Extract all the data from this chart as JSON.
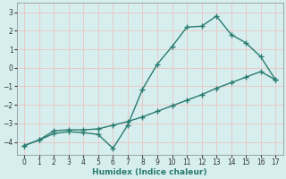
{
  "xlabel": "Humidex (Indice chaleur)",
  "line1_x": [
    0,
    1,
    2,
    3,
    4,
    5,
    6,
    7,
    8,
    9,
    10,
    11,
    12,
    13,
    14,
    15,
    16,
    17
  ],
  "line1_y": [
    -4.2,
    -3.9,
    -3.55,
    -3.45,
    -3.5,
    -3.6,
    -4.35,
    -3.1,
    -1.15,
    0.2,
    1.15,
    2.2,
    2.25,
    2.8,
    1.8,
    1.35,
    0.6,
    -0.65
  ],
  "line2_x": [
    0,
    1,
    2,
    3,
    4,
    5,
    6,
    7,
    8,
    9,
    10,
    11,
    12,
    13,
    14,
    15,
    16,
    17
  ],
  "line2_y": [
    -4.2,
    -3.9,
    -3.4,
    -3.35,
    -3.35,
    -3.3,
    -3.1,
    -2.9,
    -2.65,
    -2.35,
    -2.05,
    -1.75,
    -1.45,
    -1.1,
    -0.8,
    -0.5,
    -0.2,
    -0.65
  ],
  "line_color": "#2a7b6f",
  "bg_color": "#d6eeee",
  "grid_color": "#c0dede",
  "ylim": [
    -4.7,
    3.5
  ],
  "xlim": [
    -0.5,
    17.5
  ],
  "yticks": [
    -4,
    -3,
    -2,
    -1,
    0,
    1,
    2,
    3
  ],
  "xticks": [
    0,
    1,
    2,
    3,
    4,
    5,
    6,
    7,
    8,
    9,
    10,
    11,
    12,
    13,
    14,
    15,
    16,
    17
  ]
}
